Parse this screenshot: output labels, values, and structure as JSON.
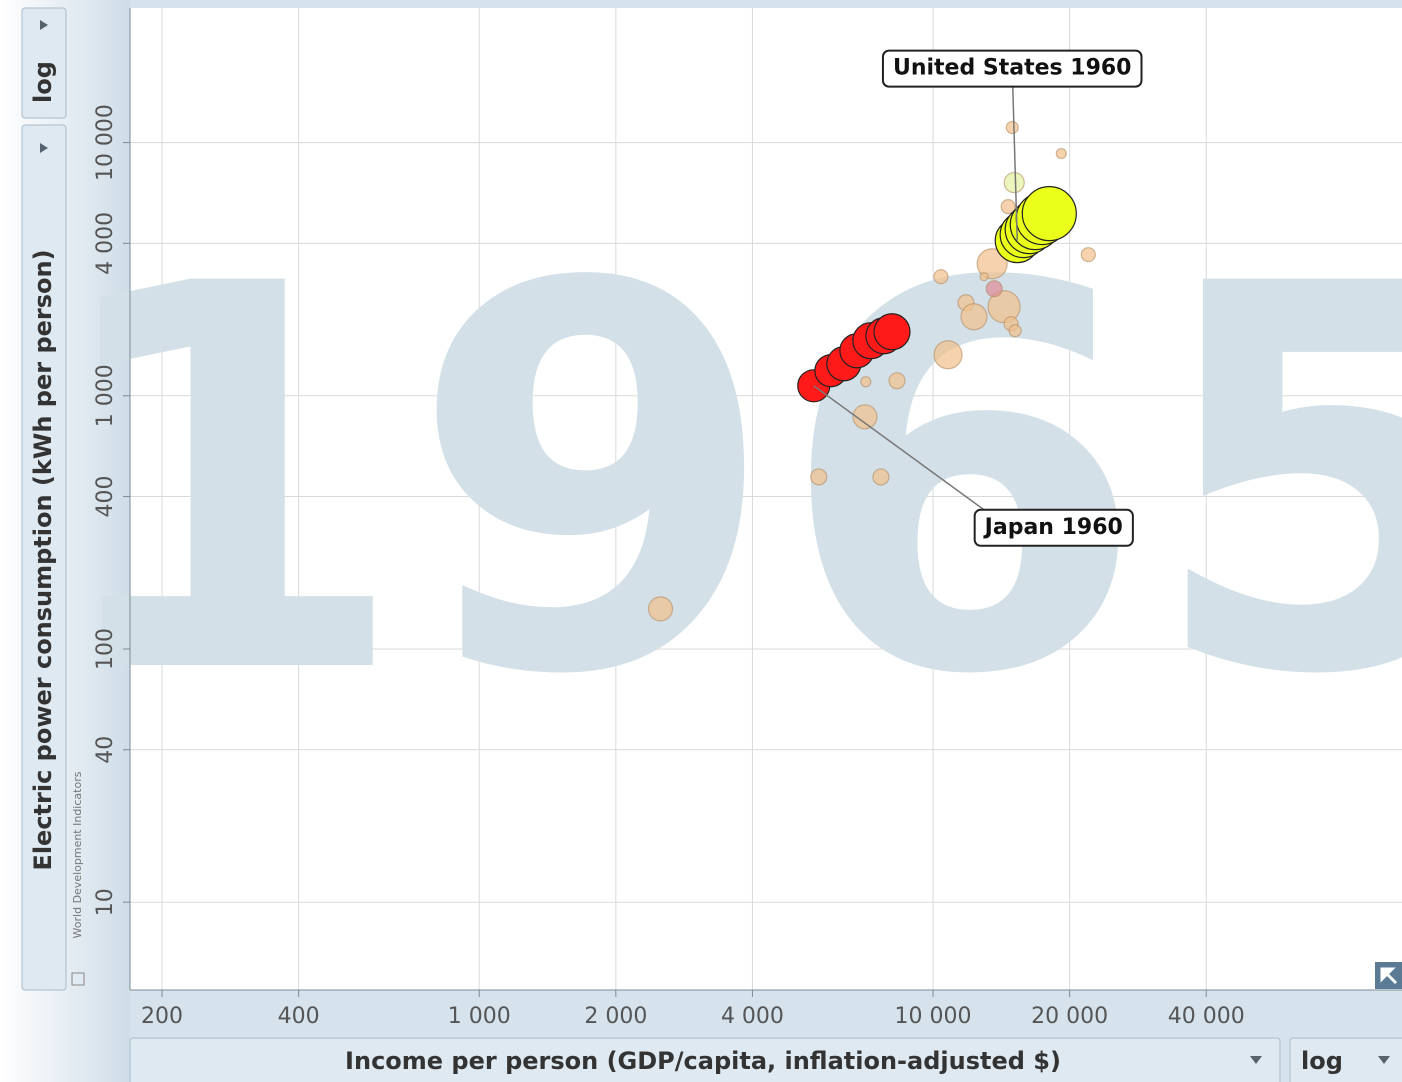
{
  "chart_data": {
    "type": "scatter",
    "year_label": "1965",
    "x_label": "Income per person (GDP/capita, inflation-adjusted $)",
    "y_label": "Electric power consumption (kWh per person)",
    "x_scale_label": "log",
    "y_scale_label": "log",
    "source": "World Development Indicators",
    "log_x": true,
    "log_y": true,
    "grid": true,
    "xlim": [
      170,
      108000
    ],
    "ylim": [
      4.5,
      34000
    ],
    "xticks": [
      200,
      400,
      {
        "value": 1000,
        "label": "1 000"
      },
      {
        "value": 2000,
        "label": "2 000"
      },
      {
        "value": 4000,
        "label": "4 000"
      },
      {
        "value": 10000,
        "label": "10 000"
      },
      {
        "value": 20000,
        "label": "20 000"
      },
      {
        "value": 40000,
        "label": "40 000"
      }
    ],
    "yticks": [
      10,
      40,
      100,
      400,
      {
        "value": 1000,
        "label": "1 000"
      },
      {
        "value": 4000,
        "label": "4 000"
      },
      {
        "value": 10000,
        "label": "10 000"
      }
    ],
    "series": [
      {
        "color": "#f2c08c",
        "x": [
          14950,
          19170,
          14640,
          21990,
          13500,
          10410,
          11820,
          12310,
          14340,
          14860,
          15170,
          10790,
          8330,
          7110,
          7080,
          5600,
          7677,
          2509,
          12960
        ],
        "values": [
          11470,
          9050,
          5585,
          3608,
          3323,
          2954,
          2331,
          2052,
          2248,
          1926,
          1807,
          1452,
          1146,
          1136,
          826,
          478,
          478,
          144,
          2954
        ],
        "sizes": [
          6,
          5,
          7,
          7,
          15,
          7,
          8,
          13,
          16,
          7,
          6,
          14,
          8,
          5,
          12,
          8,
          8,
          12,
          4
        ]
      },
      {
        "color": "#e08a96",
        "x": [
          13640
        ],
        "values": [
          2648
        ],
        "sizes": [
          8
        ]
      },
      {
        "color": "#e4f2a0",
        "x": [
          15100
        ],
        "values": [
          6950
        ],
        "sizes": [
          10
        ]
      },
      {
        "color": "#ff1a1a",
        "x": [
          5460,
          5955,
          6360,
          6795,
          7295,
          7795,
          8120
        ],
        "values": [
          1095,
          1256,
          1338,
          1506,
          1650,
          1726,
          1790
        ],
        "sizes": [
          16,
          16,
          17,
          17,
          18,
          18,
          18
        ]
      },
      {
        "color": "#eaff1a",
        "x": [
          15330,
          15800,
          16290,
          16800,
          17400,
          18040
        ],
        "values": [
          4100,
          4330,
          4530,
          4740,
          5010,
          5240
        ],
        "sizes": [
          22,
          23,
          24,
          25,
          26,
          27
        ]
      }
    ],
    "annotations": [
      {
        "text": "United States 1960",
        "series": 4,
        "point": 0
      },
      {
        "text": "Japan 1960",
        "series": 3,
        "point": 0
      }
    ]
  }
}
